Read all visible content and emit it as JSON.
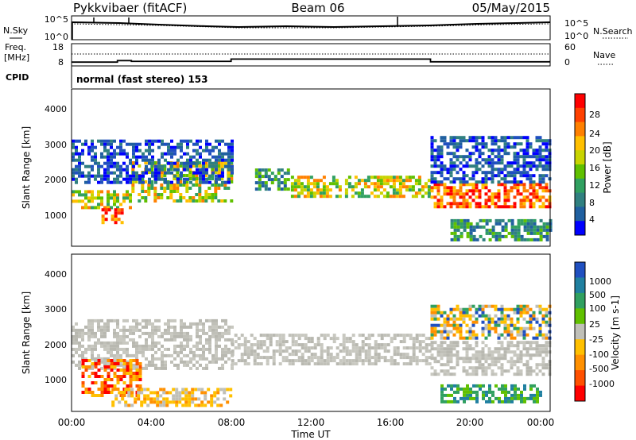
{
  "header": {
    "radar": "Pykkvibaer (fitACF)",
    "beam": "Beam 06",
    "date": "05/May/2015"
  },
  "summary_panels": {
    "nsky_label": "N.Sky",
    "nsky_ticks": [
      "10^5",
      "10^0"
    ],
    "nsearch_label": "N.Search",
    "nsearch_ticks": [
      "10^5",
      "10^0"
    ],
    "freq_label_1": "Freq.",
    "freq_label_2": "[MHz]",
    "freq_ticks": [
      "18",
      "8"
    ],
    "nave_label": "Nave",
    "nave_ticks": [
      "60",
      "0"
    ],
    "cpid_label": "CPID",
    "cpid_value": "normal (fast stereo) 153",
    "freq_steps": [
      {
        "t": 0,
        "v": 10
      },
      {
        "t": 2.3,
        "v": 11
      },
      {
        "t": 3.0,
        "v": 10.5
      },
      {
        "t": 8.0,
        "v": 12
      },
      {
        "t": 18.0,
        "v": 10.2
      },
      {
        "t": 24,
        "v": 10.2
      }
    ],
    "nave_dotted": 35
  },
  "chart_data": [
    {
      "type": "heatmap",
      "panel": "power",
      "ylabel": "Slant Range [km]",
      "yticks": [
        "4000",
        "3000",
        "2000",
        "1000"
      ],
      "ylim": [
        250,
        4600
      ],
      "xlim": [
        0,
        24
      ],
      "colorbar_label": "Power [dB]",
      "colorbar_ticks": [
        "28",
        "24",
        "20",
        "16",
        "12",
        "8",
        "4"
      ],
      "colorbar_colors": [
        "#ff0000",
        "#ff4000",
        "#ff8000",
        "#ffc000",
        "#c8d400",
        "#60c000",
        "#30a060",
        "#308080",
        "#2060a0",
        "#0000ff"
      ],
      "echo_bands": [
        {
          "t0": 0.0,
          "t1": 3.0,
          "r0": 1300,
          "r1": 1800,
          "level": "high"
        },
        {
          "t0": 1.5,
          "t1": 2.5,
          "r0": 900,
          "r1": 1300,
          "level": "max"
        },
        {
          "t0": 3.0,
          "t1": 8.0,
          "r0": 1500,
          "r1": 2600,
          "level": "high"
        },
        {
          "t0": 0.0,
          "t1": 8.0,
          "r0": 2000,
          "r1": 3200,
          "level": "low"
        },
        {
          "t0": 9.2,
          "t1": 10.8,
          "r0": 1800,
          "r1": 2400,
          "level": "mid"
        },
        {
          "t0": 11.0,
          "t1": 18.0,
          "r0": 1600,
          "r1": 2200,
          "level": "high"
        },
        {
          "t0": 18.0,
          "t1": 24.0,
          "r0": 1300,
          "r1": 2000,
          "level": "max"
        },
        {
          "t0": 18.0,
          "t1": 24.0,
          "r0": 2000,
          "r1": 3300,
          "level": "low"
        },
        {
          "t0": 19.0,
          "t1": 24.0,
          "r0": 400,
          "r1": 1000,
          "level": "mid"
        }
      ]
    },
    {
      "type": "heatmap",
      "panel": "velocity",
      "ylabel": "Slant Range [km]",
      "yticks": [
        "4000",
        "3000",
        "2000",
        "1000"
      ],
      "ylim": [
        250,
        4600
      ],
      "xlim": [
        0,
        24
      ],
      "xticks": [
        "00:00",
        "04:00",
        "08:00",
        "12:00",
        "16:00",
        "20:00",
        "00:00"
      ],
      "xlabel": "Time UT",
      "colorbar_label": "Velocity [m s-1]",
      "colorbar_ticks": [
        "1000",
        "500",
        "100",
        "25",
        "-25",
        "-100",
        "-500",
        "-1000"
      ],
      "colorbar_colors": [
        "#2050c0",
        "#2080a0",
        "#30a060",
        "#60c000",
        "#c0c0b8",
        "#ffc000",
        "#ff9000",
        "#ff5000",
        "#ff0000"
      ],
      "echo_bands": [
        {
          "t0": 0.0,
          "t1": 8.0,
          "r0": 1400,
          "r1": 2800,
          "level": "ground"
        },
        {
          "t0": 8.0,
          "t1": 18.0,
          "r0": 1600,
          "r1": 2400,
          "level": "ground"
        },
        {
          "t0": 18.0,
          "t1": 24.0,
          "r0": 1300,
          "r1": 2200,
          "level": "ground"
        },
        {
          "t0": 0.5,
          "t1": 3.5,
          "r0": 700,
          "r1": 1700,
          "level": "neg"
        },
        {
          "t0": 2.0,
          "t1": 8.0,
          "r0": 400,
          "r1": 900,
          "level": "negweak"
        },
        {
          "t0": 18.5,
          "t1": 23.5,
          "r0": 500,
          "r1": 1000,
          "level": "pos"
        },
        {
          "t0": 18.0,
          "t1": 24.0,
          "r0": 2300,
          "r1": 3200,
          "level": "mixed"
        }
      ]
    }
  ]
}
